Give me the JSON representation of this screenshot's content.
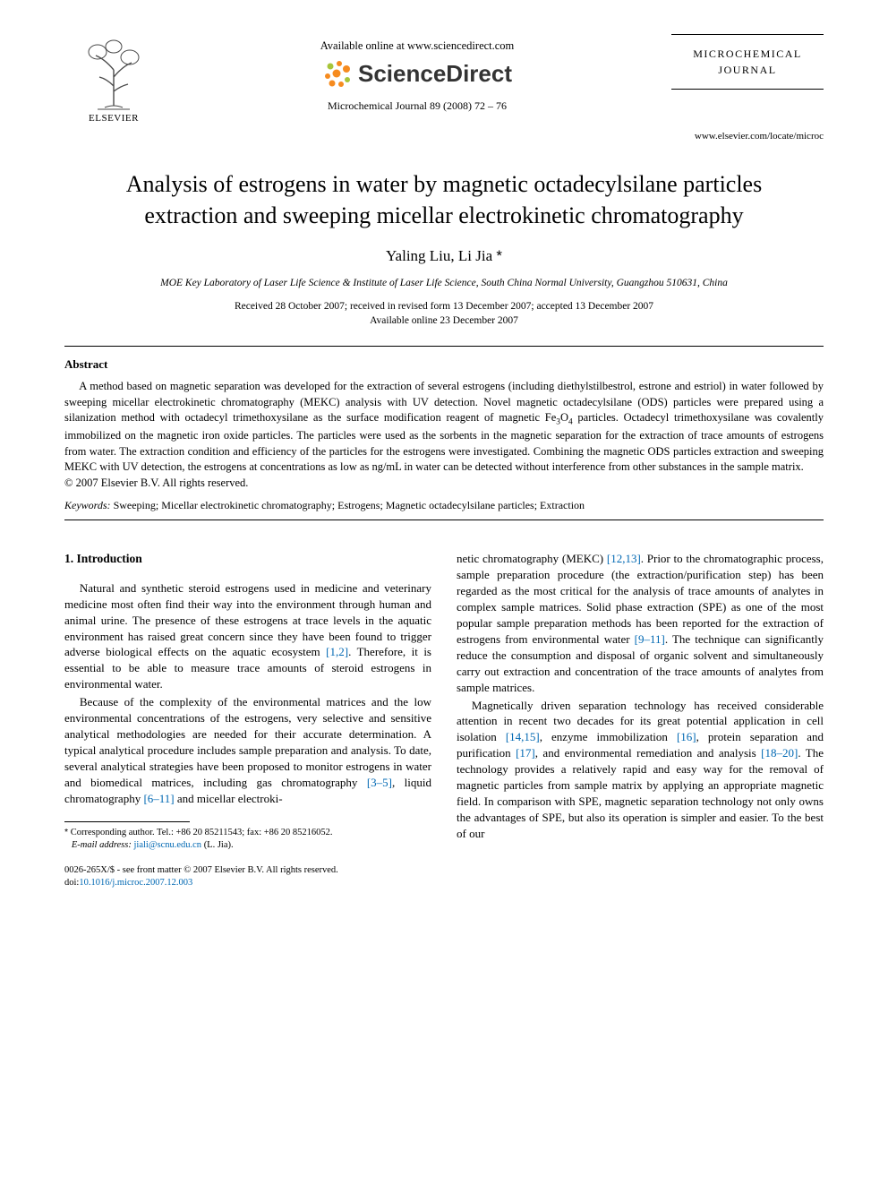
{
  "header": {
    "publisher_label": "ELSEVIER",
    "available_online": "Available online at www.sciencedirect.com",
    "sd_brand": "ScienceDirect",
    "journal_ref": "Microchemical Journal 89 (2008) 72 – 76",
    "journal_box_line1": "MICROCHEMICAL",
    "journal_box_line2": "JOURNAL",
    "journal_site": "www.elsevier.com/locate/microc",
    "colors": {
      "sd_orange": "#f68b1f",
      "sd_green": "#a7c539",
      "sd_text": "#333333",
      "link": "#0068b3",
      "text": "#000000",
      "bg": "#ffffff"
    }
  },
  "article": {
    "title_line1": "Analysis of estrogens in water by magnetic octadecylsilane particles",
    "title_line2": "extraction and sweeping micellar electrokinetic chromatography",
    "authors_html": "Yaling Liu, Li Jia",
    "corresponding_marker": "*",
    "affiliation": "MOE Key Laboratory of Laser Life Science & Institute of Laser Life Science, South China Normal University, Guangzhou 510631, China",
    "dates_line1": "Received 28 October 2007; received in revised form 13 December 2007; accepted 13 December 2007",
    "dates_line2": "Available online 23 December 2007"
  },
  "abstract": {
    "heading": "Abstract",
    "body": "A method based on magnetic separation was developed for the extraction of several estrogens (including diethylstilbestrol, estrone and estriol) in water followed by sweeping micellar electrokinetic chromatography (MEKC) analysis with UV detection. Novel magnetic octadecylsilane (ODS) particles were prepared using a silanization method with octadecyl trimethoxysilane as the surface modification reagent of magnetic Fe3O4 particles. Octadecyl trimethoxysilane was covalently immobilized on the magnetic iron oxide particles. The particles were used as the sorbents in the magnetic separation for the extraction of trace amounts of estrogens from water. The extraction condition and efficiency of the particles for the estrogens were investigated. Combining the magnetic ODS particles extraction and sweeping MEKC with UV detection, the estrogens at concentrations as low as ng/mL in water can be detected without interference from other substances in the sample matrix.",
    "copyright": "© 2007 Elsevier B.V. All rights reserved.",
    "keywords_label": "Keywords:",
    "keywords_value": "Sweeping; Micellar electrokinetic chromatography; Estrogens; Magnetic octadecylsilane particles; Extraction"
  },
  "intro": {
    "heading": "1. Introduction",
    "col1_p1": "Natural and synthetic steroid estrogens used in medicine and veterinary medicine most often find their way into the environment through human and animal urine. The presence of these estrogens at trace levels in the aquatic environment has raised great concern since they have been found to trigger adverse biological effects on the aquatic ecosystem ",
    "col1_p1_ref": "[1,2]",
    "col1_p1_tail": ". Therefore, it is essential to be able to measure trace amounts of steroid estrogens in environmental water.",
    "col1_p2a": "Because of the complexity of the environmental matrices and the low environmental concentrations of the estrogens, very selective and sensitive analytical methodologies are needed for their accurate determination. A typical analytical procedure includes sample preparation and analysis. To date, several analytical strategies have been proposed to monitor estrogens in water and biomedical matrices, including gas chromatography ",
    "col1_p2_ref1": "[3–5]",
    "col1_p2b": ", liquid chromatography ",
    "col1_p2_ref2": "[6–11]",
    "col1_p2c": " and micellar electroki-",
    "col2_p1a": "netic chromatography (MEKC) ",
    "col2_p1_ref1": "[12,13]",
    "col2_p1b": ". Prior to the chromatographic process, sample preparation procedure (the extraction/purification step) has been regarded as the most critical for the analysis of trace amounts of analytes in complex sample matrices. Solid phase extraction (SPE) as one of the most popular sample preparation methods has been reported for the extraction of estrogens from environmental water ",
    "col2_p1_ref2": "[9–11]",
    "col2_p1c": ". The technique can significantly reduce the consumption and disposal of organic solvent and simultaneously carry out extraction and concentration of the trace amounts of analytes from sample matrices.",
    "col2_p2a": "Magnetically driven separation technology has received considerable attention in recent two decades for its great potential application in cell isolation ",
    "col2_p2_ref1": "[14,15]",
    "col2_p2b": ", enzyme immobilization ",
    "col2_p2_ref2": "[16]",
    "col2_p2c": ", protein separation and purification ",
    "col2_p2_ref3": "[17]",
    "col2_p2d": ", and environmental remediation and analysis ",
    "col2_p2_ref4": "[18–20]",
    "col2_p2e": ". The technology provides a relatively rapid and easy way for the removal of magnetic particles from sample matrix by applying an appropriate magnetic field. In comparison with SPE, magnetic separation technology not only owns the advantages of SPE, but also its operation is simpler and easier. To the best of our"
  },
  "footnote": {
    "marker": "*",
    "text": "Corresponding author. Tel.: +86 20 85211543; fax: +86 20 85216052.",
    "email_label": "E-mail address:",
    "email": "jiali@scnu.edu.cn",
    "email_tail": " (L. Jia)."
  },
  "bottom": {
    "line1": "0026-265X/$ - see front matter © 2007 Elsevier B.V. All rights reserved.",
    "doi_label": "doi:",
    "doi": "10.1016/j.microc.2007.12.003"
  }
}
